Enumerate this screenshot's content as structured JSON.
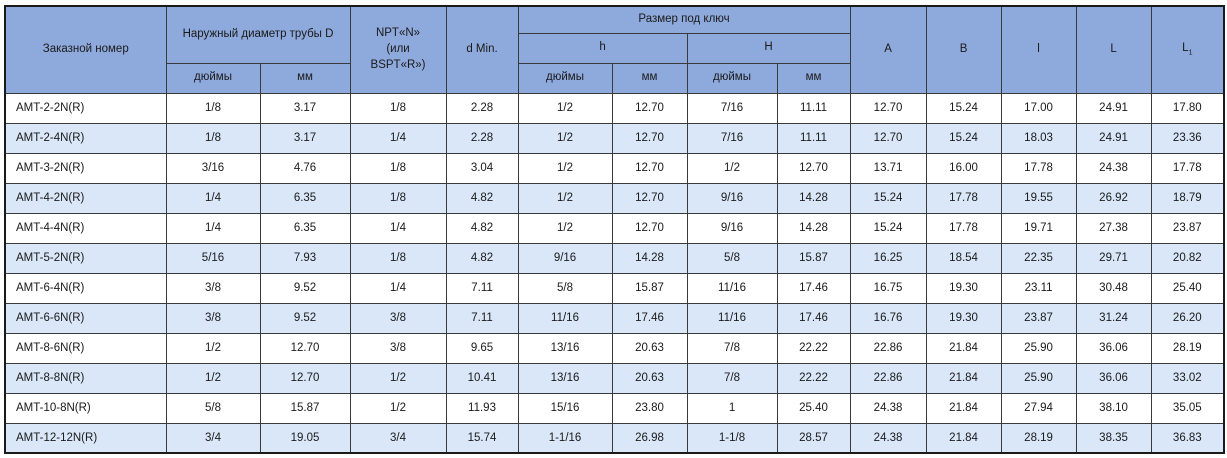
{
  "table": {
    "header": {
      "order_number": "Заказной номер",
      "outer_diameter": "Наружный диаметр трубы D",
      "npt_line1": "NPT«N»",
      "npt_line2": "(или",
      "npt_line3": "BSPT«R»)",
      "d_min": "d Min.",
      "wrench_size": "Размер под ключ",
      "h_lower": "h",
      "h_upper": "H",
      "inches": "дюймы",
      "mm": "мм",
      "col_a": "A",
      "col_b": "B",
      "col_l_small": "l",
      "col_l": "L",
      "col_l1_base": "L",
      "col_l1_sub": "1"
    },
    "rows": [
      [
        "AMT-2-2N(R)",
        "1/8",
        "3.17",
        "1/8",
        "2.28",
        "1/2",
        "12.70",
        "7/16",
        "11.11",
        "12.70",
        "15.24",
        "17.00",
        "24.91",
        "17.80"
      ],
      [
        "AMT-2-4N(R)",
        "1/8",
        "3.17",
        "1/4",
        "2.28",
        "1/2",
        "12.70",
        "7/16",
        "11.11",
        "12.70",
        "15.24",
        "18.03",
        "24.91",
        "23.36"
      ],
      [
        "AMT-3-2N(R)",
        "3/16",
        "4.76",
        "1/8",
        "3.04",
        "1/2",
        "12.70",
        "1/2",
        "12.70",
        "13.71",
        "16.00",
        "17.78",
        "24.38",
        "17.78"
      ],
      [
        "AMT-4-2N(R)",
        "1/4",
        "6.35",
        "1/8",
        "4.82",
        "1/2",
        "12.70",
        "9/16",
        "14.28",
        "15.24",
        "17.78",
        "19.55",
        "26.92",
        "18.79"
      ],
      [
        "AMT-4-4N(R)",
        "1/4",
        "6.35",
        "1/4",
        "4.82",
        "1/2",
        "12.70",
        "9/16",
        "14.28",
        "15.24",
        "17.78",
        "19.71",
        "27.38",
        "23.87"
      ],
      [
        "AMT-5-2N(R)",
        "5/16",
        "7.93",
        "1/8",
        "4.82",
        "9/16",
        "14.28",
        "5/8",
        "15.87",
        "16.25",
        "18.54",
        "22.35",
        "29.71",
        "20.82"
      ],
      [
        "AMT-6-4N(R)",
        "3/8",
        "9.52",
        "1/4",
        "7.11",
        "5/8",
        "15.87",
        "11/16",
        "17.46",
        "16.75",
        "19.30",
        "23.11",
        "30.48",
        "25.40"
      ],
      [
        "AMT-6-6N(R)",
        "3/8",
        "9.52",
        "3/8",
        "7.11",
        "11/16",
        "17.46",
        "11/16",
        "17.46",
        "16.76",
        "19.30",
        "23.87",
        "31.24",
        "26.20"
      ],
      [
        "AMT-8-6N(R)",
        "1/2",
        "12.70",
        "3/8",
        "9.65",
        "13/16",
        "20.63",
        "7/8",
        "22.22",
        "22.86",
        "21.84",
        "25.90",
        "36.06",
        "28.19"
      ],
      [
        "AMT-8-8N(R)",
        "1/2",
        "12.70",
        "1/2",
        "10.41",
        "13/16",
        "20.63",
        "7/8",
        "22.22",
        "22.86",
        "21.84",
        "25.90",
        "36.06",
        "33.02"
      ],
      [
        "AMT-10-8N(R)",
        "5/8",
        "15.87",
        "1/2",
        "11.93",
        "15/16",
        "23.80",
        "1",
        "25.40",
        "24.38",
        "21.84",
        "27.94",
        "38.10",
        "35.05"
      ],
      [
        "AMT-12-12N(R)",
        "3/4",
        "19.05",
        "3/4",
        "15.74",
        "1-1/16",
        "26.98",
        "1-1/8",
        "28.57",
        "24.38",
        "21.84",
        "28.19",
        "38.35",
        "36.83"
      ]
    ]
  },
  "colors": {
    "header_bg": "#8ea9db",
    "row_bg": "#ffffff",
    "row_alt_bg": "#d9e7f8",
    "border": "#3a3a3a",
    "outer_border": "#1a1a1a"
  }
}
